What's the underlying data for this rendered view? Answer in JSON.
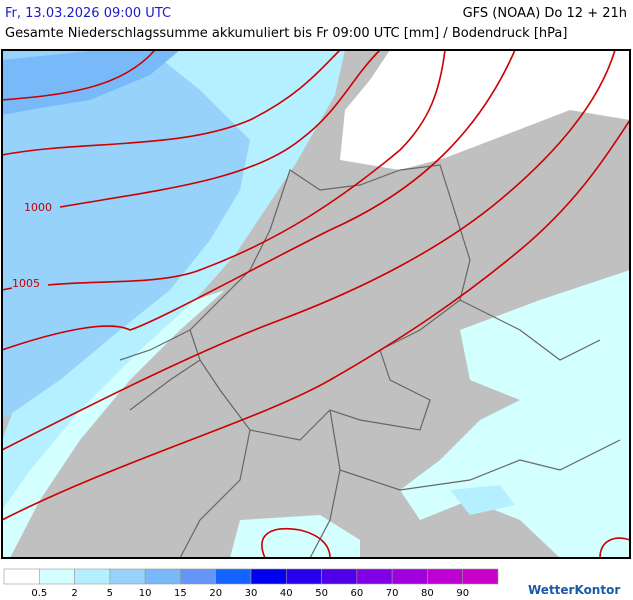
{
  "header": {
    "title": "Fr, 13.03.2026 09:00 UTC",
    "model": "GFS (NOAA) Do 12 + 21h",
    "subtitle": "Gesamte Niederschlagssumme akkumuliert bis Fr 09:00 UTC [mm] / Bodendruck [hPa]"
  },
  "map": {
    "isobar_labels": [
      1000,
      1005
    ]
  },
  "legend": {
    "thresholds": [
      0.5,
      2,
      5,
      10,
      15,
      20,
      30,
      40,
      50,
      60,
      70,
      80,
      90
    ],
    "colors": [
      "#ffffff",
      "#d4ffff",
      "#b4f0ff",
      "#96d2fa",
      "#78b9fa",
      "#6496f5",
      "#1464ff",
      "#0000f0",
      "#2800f0",
      "#5000e6",
      "#8200e6",
      "#a000dc",
      "#be00d2",
      "#c800c8"
    ]
  },
  "logo": "WetterKontor"
}
